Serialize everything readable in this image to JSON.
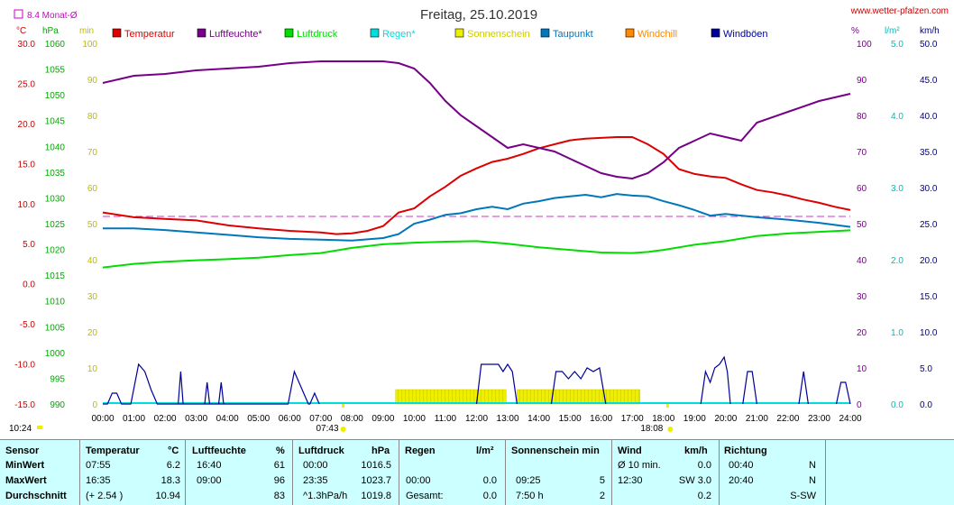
{
  "header": {
    "title": "Freitag, 25.10.2019",
    "site": "www.wetter-pfalzen.com",
    "monat_label": "8.4 Monat-Ø"
  },
  "axis_units": {
    "temp": "°C",
    "pressure": "hPa",
    "rain": "min",
    "percent": "%",
    "rainrate": "l/m²",
    "wind": "km/h"
  },
  "sun_times": {
    "rise": "07:43",
    "set": "18:08"
  },
  "now_label": "10:24",
  "chart_data": {
    "type": "line",
    "title": "Freitag, 25.10.2019",
    "x_labels": [
      "00:00",
      "01:00",
      "02:00",
      "03:00",
      "04:00",
      "05:00",
      "06:00",
      "07:00",
      "08:00",
      "09:00",
      "10:00",
      "11:00",
      "12:00",
      "13:00",
      "14:00",
      "15:00",
      "16:00",
      "17:00",
      "18:00",
      "19:00",
      "20:00",
      "21:00",
      "22:00",
      "23:00",
      "24:00"
    ],
    "left_axes": {
      "temp_c": [
        "30.0",
        "25.0",
        "20.0",
        "15.0",
        "10.0",
        "5.0",
        "0.0",
        "-5.0",
        "-10.0",
        "-15.0"
      ],
      "pressure_hpa": [
        "1060",
        "1055",
        "1050",
        "1045",
        "1040",
        "1035",
        "1030",
        "1025",
        "1020",
        "1015",
        "1010",
        "1005",
        "1000",
        "995",
        "990"
      ],
      "rain_min": [
        "100",
        "90",
        "80",
        "70",
        "60",
        "50",
        "40",
        "30",
        "20",
        "10",
        "0"
      ]
    },
    "right_axes": {
      "percent": [
        "100",
        "90",
        "80",
        "70",
        "60",
        "50",
        "40",
        "30",
        "20",
        "10",
        "0"
      ],
      "rain_lm2": [
        "5.0",
        "4.0",
        "3.0",
        "2.0",
        "1.0",
        "0.0"
      ],
      "wind_kmh": [
        "50.0",
        "45.0",
        "40.0",
        "35.0",
        "30.0",
        "25.0",
        "20.0",
        "15.0",
        "10.0",
        "5.0",
        "0.0"
      ]
    },
    "month_avg_temp": 8.4,
    "legend": [
      {
        "name": "Temperatur",
        "color": "#dd0000"
      },
      {
        "name": "Luftfeuchte*",
        "color": "#770088"
      },
      {
        "name": "Luftdruck",
        "color": "#00dd00"
      },
      {
        "name": "Regen*",
        "color": "#00dddd"
      },
      {
        "name": "Sonnenschein",
        "color": "#eeee00"
      },
      {
        "name": "Taupunkt",
        "color": "#0077bb"
      },
      {
        "name": "Windchill",
        "color": "#ff8800"
      },
      {
        "name": "Windböen",
        "color": "#000099"
      }
    ],
    "series": [
      {
        "name": "Temperatur",
        "color": "#dd0000",
        "unit": "°C",
        "x": [
          0,
          1,
          2,
          3,
          4,
          5,
          6,
          7,
          7.5,
          8,
          8.5,
          9,
          9.5,
          10,
          10.5,
          11,
          11.5,
          12,
          12.5,
          13,
          13.5,
          14,
          14.5,
          15,
          15.5,
          16,
          16.5,
          17,
          17.5,
          18,
          18.5,
          19,
          19.5,
          20,
          20.5,
          21,
          21.5,
          22,
          22.5,
          23,
          23.5,
          24
        ],
        "y": [
          8.9,
          8.3,
          8.1,
          7.9,
          7.3,
          6.9,
          6.6,
          6.4,
          6.2,
          6.3,
          6.6,
          7.2,
          8.9,
          9.4,
          10.9,
          12.1,
          13.5,
          14.4,
          15.2,
          15.6,
          16.2,
          16.9,
          17.4,
          17.9,
          18.1,
          18.2,
          18.3,
          18.3,
          17.4,
          16.2,
          14.3,
          13.7,
          13.4,
          13.2,
          12.4,
          11.7,
          11.4,
          11.0,
          10.5,
          10.1,
          9.6,
          9.2
        ]
      },
      {
        "name": "Taupunkt",
        "color": "#0077bb",
        "unit": "°C",
        "x": [
          0,
          1,
          2,
          3,
          4,
          5,
          6,
          7,
          8,
          9,
          9.5,
          10,
          10.5,
          11,
          11.5,
          12,
          12.5,
          13,
          13.5,
          14,
          14.5,
          15,
          15.5,
          16,
          16.5,
          17,
          17.5,
          18,
          18.5,
          19,
          19.5,
          20,
          20.5,
          21,
          22,
          23,
          24
        ],
        "y": [
          6.9,
          6.9,
          6.7,
          6.4,
          6.1,
          5.8,
          5.6,
          5.5,
          5.4,
          5.7,
          6.2,
          7.5,
          8.0,
          8.6,
          8.8,
          9.3,
          9.6,
          9.3,
          10.0,
          10.3,
          10.7,
          10.9,
          11.1,
          10.8,
          11.2,
          11.0,
          10.9,
          10.3,
          9.8,
          9.2,
          8.5,
          8.7,
          8.5,
          8.3,
          8.0,
          7.6,
          7.1
        ]
      },
      {
        "name": "Luftfeuchte*",
        "color": "#770088",
        "unit": "%",
        "x": [
          0,
          0.5,
          1,
          2,
          3,
          4,
          5,
          6,
          7,
          8,
          9,
          9.5,
          10,
          10.5,
          11,
          11.5,
          12,
          12.5,
          13,
          13.5,
          14,
          14.5,
          15,
          15.5,
          16,
          16.5,
          17,
          17.5,
          18,
          18.5,
          19,
          19.5,
          20,
          20.5,
          21,
          22,
          23,
          24
        ],
        "y": [
          89,
          90,
          91,
          91.5,
          92.5,
          93,
          93.5,
          94.5,
          95,
          95,
          95,
          94.5,
          93,
          89,
          84,
          80,
          77,
          74,
          71,
          72,
          71,
          70,
          68,
          66,
          64,
          63,
          62.5,
          64,
          67,
          71,
          73,
          75,
          74,
          73,
          78,
          81,
          84,
          86
        ]
      },
      {
        "name": "Luftdruck",
        "color": "#00dd00",
        "unit": "hPa",
        "x": [
          0,
          1,
          2,
          3,
          4,
          5,
          6,
          7,
          8,
          9,
          10,
          11,
          12,
          13,
          14,
          15,
          16,
          17,
          17.5,
          18,
          19,
          20,
          21,
          22,
          23,
          24
        ],
        "y": [
          1016.5,
          1017.2,
          1017.6,
          1017.9,
          1018.1,
          1018.4,
          1018.9,
          1019.3,
          1020.3,
          1021.0,
          1021.3,
          1021.5,
          1021.6,
          1021.1,
          1020.4,
          1019.9,
          1019.4,
          1019.3,
          1019.5,
          1019.9,
          1020.9,
          1021.6,
          1022.6,
          1023.1,
          1023.4,
          1023.7
        ]
      }
    ],
    "wind_gusts": [
      {
        "x": [
          0,
          0.15,
          0.3,
          0.45,
          0.6,
          0.9,
          1.15,
          1.35,
          1.55,
          1.75,
          1.95,
          5.95,
          6.15,
          6.3,
          6.6,
          6.65,
          6.8,
          6.95
        ],
        "y": [
          0,
          0,
          1.5,
          1.5,
          0,
          0,
          5.5,
          4.5,
          2,
          0,
          0,
          0,
          4.5,
          3,
          0,
          0,
          1.5,
          0
        ]
      }
    ],
    "gust_spikes": [
      {
        "x": 2.5,
        "y": 4.5
      },
      {
        "x": 3.35,
        "y": 3.0
      },
      {
        "x": 3.8,
        "y": 3.0
      }
    ],
    "gust_blocks": [
      {
        "x": [
          12.0,
          12.15,
          12.3,
          12.7,
          12.85,
          13.0,
          13.15,
          13.3
        ],
        "y": [
          0,
          5.5,
          5.5,
          5.5,
          4.5,
          5.5,
          4.5,
          0
        ]
      },
      {
        "x": [
          14.4,
          14.55,
          14.75,
          14.95,
          15.15,
          15.35,
          15.55,
          15.75,
          15.95,
          16.15
        ],
        "y": [
          0,
          4.5,
          4.5,
          3.5,
          4.5,
          3.5,
          5,
          4.5,
          5,
          0
        ]
      }
    ],
    "gust_evening": [
      {
        "x": [
          19.2,
          19.35,
          19.5,
          19.65,
          19.8,
          19.95,
          20.05,
          20.15
        ],
        "y": [
          0,
          4.5,
          3,
          5,
          5.5,
          6.5,
          4.5,
          0
        ]
      },
      {
        "x": [
          20.55,
          20.7,
          20.85,
          21.0
        ],
        "y": [
          0,
          4.5,
          4.5,
          0
        ]
      },
      {
        "x": [
          22.35,
          22.5,
          22.65
        ],
        "y": [
          0,
          4.5,
          0
        ]
      },
      {
        "x": [
          23.55,
          23.7,
          23.85,
          24.0
        ],
        "y": [
          0,
          3,
          3,
          0
        ]
      }
    ],
    "sunshine_blocks": [
      [
        9.4,
        12.95
      ],
      [
        13.3,
        17.25
      ]
    ],
    "sunshine_value": 4
  },
  "stats": {
    "headers": {
      "sensor": "Sensor",
      "temp": "Temperatur",
      "temp_unit": "°C",
      "hum": "Luftfeuchte",
      "hum_unit": "%",
      "press": "Luftdruck",
      "press_unit": "hPa",
      "rain": "Regen",
      "rain_unit": "l/m²",
      "sun": "Sonnenschein min",
      "wind": "Wind",
      "wind_unit": "km/h",
      "dir": "Richtung"
    },
    "rows": [
      {
        "label": "MinWert",
        "temp_t": "07:55",
        "temp_v": "6.2",
        "hum_t": "16:40",
        "hum_v": "61",
        "press_t": "00:00",
        "press_v": "1016.5",
        "rain_t": "",
        "rain_v": "",
        "sun_t": "",
        "sun_v": "",
        "wind_t": "Ø 10 min.",
        "wind_v": "0.0",
        "dir_t": "00:40",
        "dir_v": "N"
      },
      {
        "label": "MaxWert",
        "temp_t": "16:35",
        "temp_v": "18.3",
        "hum_t": "09:00",
        "hum_v": "96",
        "press_t": "23:35",
        "press_v": "1023.7",
        "rain_t": "00:00",
        "rain_v": "0.0",
        "sun_t": "09:25",
        "sun_v": "5",
        "wind_t": "12:30",
        "wind_v": "SW 3.0",
        "dir_t": "20:40",
        "dir_v": "N"
      },
      {
        "label": "Durchschnitt",
        "temp_t": "(+ 2.54 )",
        "temp_v": "10.94",
        "hum_t": "",
        "hum_v": "83",
        "press_t": "^1.3hPa/h",
        "press_v": "1019.8",
        "rain_t": "Gesamt:",
        "rain_v": "0.0",
        "sun_t": "7:50 h",
        "sun_v": "2",
        "wind_t": "",
        "wind_v": "0.2",
        "dir_t": "",
        "dir_v": "S-SW"
      }
    ]
  }
}
